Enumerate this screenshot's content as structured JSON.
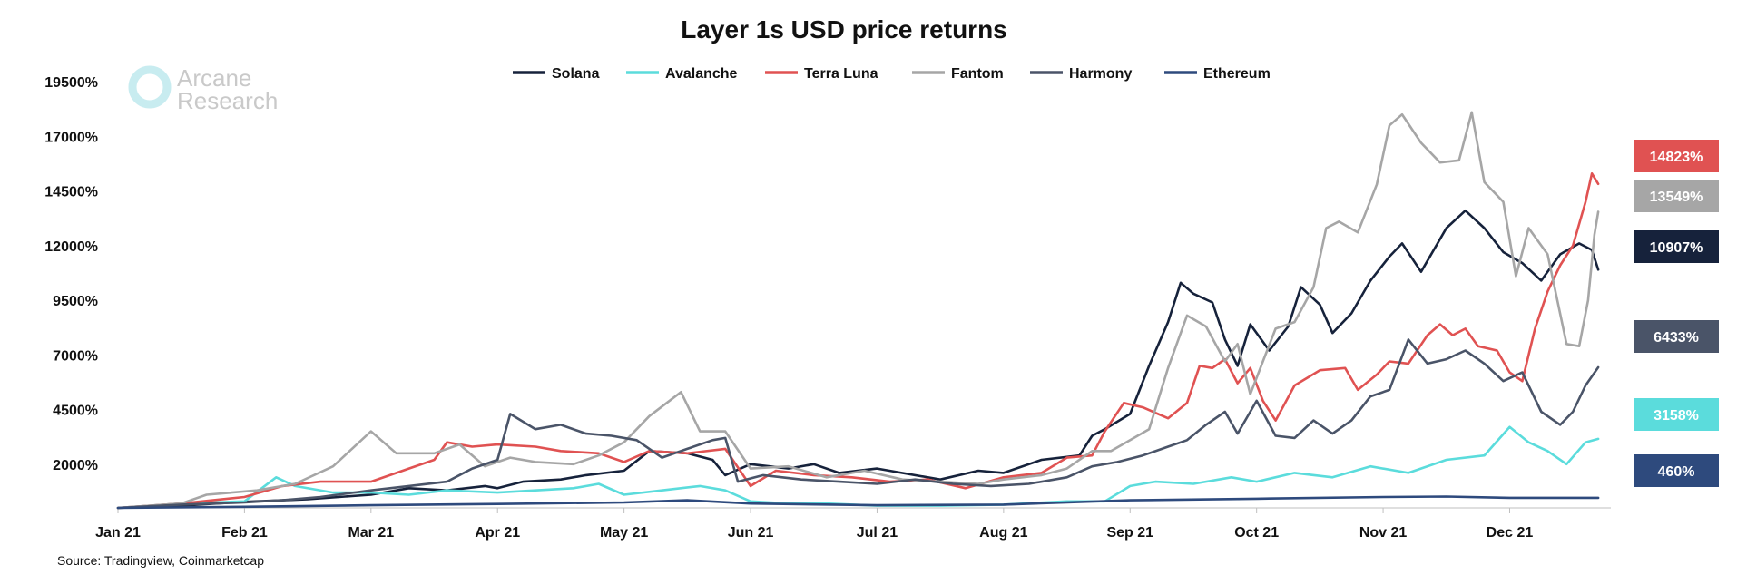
{
  "chart_data": {
    "type": "line",
    "title": "Layer 1s USD price returns",
    "source": "Source: Tradingview, Coinmarketcap",
    "watermark": {
      "line1": "Arcane",
      "line2": "Research"
    },
    "x_tick_labels": [
      "Jan 21",
      "Feb 21",
      "Mar 21",
      "Apr 21",
      "May 21",
      "Jun 21",
      "Jul 21",
      "Aug 21",
      "Sep 21",
      "Oct 21",
      "Nov 21",
      "Dec 21"
    ],
    "y_tick_labels": [
      "2000%",
      "4500%",
      "7000%",
      "9500%",
      "12000%",
      "14500%",
      "17000%",
      "19500%"
    ],
    "y_ticks": [
      2000,
      4500,
      7000,
      9500,
      12000,
      14500,
      17000,
      19500
    ],
    "ylim": [
      0,
      20000
    ],
    "x_unit": "month index (0 = Jan 21)",
    "xlim": [
      0,
      11.8
    ],
    "legend_position": "top",
    "series": [
      {
        "name": "Solana",
        "color": "#16223b",
        "end_label": "10907%",
        "points": [
          [
            0,
            0
          ],
          [
            0.5,
            100
          ],
          [
            1,
            280
          ],
          [
            1.5,
            400
          ],
          [
            2,
            600
          ],
          [
            2.3,
            900
          ],
          [
            2.6,
            800
          ],
          [
            2.9,
            1000
          ],
          [
            3.0,
            900
          ],
          [
            3.2,
            1200
          ],
          [
            3.5,
            1300
          ],
          [
            3.7,
            1500
          ],
          [
            4,
            1700
          ],
          [
            4.2,
            2600
          ],
          [
            4.5,
            2500
          ],
          [
            4.7,
            2200
          ],
          [
            4.8,
            1500
          ],
          [
            5,
            2000
          ],
          [
            5.3,
            1800
          ],
          [
            5.5,
            2000
          ],
          [
            5.7,
            1600
          ],
          [
            6,
            1800
          ],
          [
            6.5,
            1300
          ],
          [
            6.8,
            1700
          ],
          [
            7,
            1600
          ],
          [
            7.3,
            2200
          ],
          [
            7.6,
            2400
          ],
          [
            7.7,
            3300
          ],
          [
            7.8,
            3600
          ],
          [
            8,
            4300
          ],
          [
            8.15,
            6500
          ],
          [
            8.3,
            8500
          ],
          [
            8.4,
            10300
          ],
          [
            8.5,
            9800
          ],
          [
            8.65,
            9400
          ],
          [
            8.75,
            7700
          ],
          [
            8.85,
            6500
          ],
          [
            8.95,
            8400
          ],
          [
            9.1,
            7200
          ],
          [
            9.25,
            8300
          ],
          [
            9.35,
            10100
          ],
          [
            9.5,
            9300
          ],
          [
            9.6,
            8000
          ],
          [
            9.75,
            8900
          ],
          [
            9.9,
            10400
          ],
          [
            10.05,
            11500
          ],
          [
            10.15,
            12100
          ],
          [
            10.3,
            10800
          ],
          [
            10.5,
            12800
          ],
          [
            10.65,
            13600
          ],
          [
            10.8,
            12800
          ],
          [
            10.95,
            11700
          ],
          [
            11.1,
            11200
          ],
          [
            11.25,
            10400
          ],
          [
            11.4,
            11600
          ],
          [
            11.55,
            12100
          ],
          [
            11.65,
            11800
          ],
          [
            11.7,
            10900
          ]
        ]
      },
      {
        "name": "Avalanche",
        "color": "#5bdcdc",
        "end_label": "3158%",
        "points": [
          [
            0,
            0
          ],
          [
            0.5,
            200
          ],
          [
            1,
            300
          ],
          [
            1.25,
            1400
          ],
          [
            1.4,
            1000
          ],
          [
            1.7,
            700
          ],
          [
            2,
            700
          ],
          [
            2.3,
            600
          ],
          [
            2.6,
            800
          ],
          [
            3,
            700
          ],
          [
            3.3,
            800
          ],
          [
            3.6,
            900
          ],
          [
            3.8,
            1100
          ],
          [
            4.0,
            600
          ],
          [
            4.3,
            800
          ],
          [
            4.6,
            1000
          ],
          [
            4.8,
            800
          ],
          [
            5,
            300
          ],
          [
            5.3,
            200
          ],
          [
            5.6,
            200
          ],
          [
            6,
            100
          ],
          [
            6.5,
            100
          ],
          [
            7,
            150
          ],
          [
            7.5,
            300
          ],
          [
            7.8,
            300
          ],
          [
            8,
            1000
          ],
          [
            8.2,
            1200
          ],
          [
            8.5,
            1100
          ],
          [
            8.8,
            1400
          ],
          [
            9.0,
            1200
          ],
          [
            9.3,
            1600
          ],
          [
            9.6,
            1400
          ],
          [
            9.9,
            1900
          ],
          [
            10.2,
            1600
          ],
          [
            10.5,
            2200
          ],
          [
            10.8,
            2400
          ],
          [
            11.0,
            3700
          ],
          [
            11.15,
            3000
          ],
          [
            11.3,
            2600
          ],
          [
            11.45,
            2000
          ],
          [
            11.6,
            3000
          ],
          [
            11.7,
            3158
          ]
        ]
      },
      {
        "name": "Terra Luna",
        "color": "#e05252",
        "end_label": "14823%",
        "points": [
          [
            0,
            0
          ],
          [
            0.5,
            200
          ],
          [
            1,
            500
          ],
          [
            1.3,
            1000
          ],
          [
            1.6,
            1200
          ],
          [
            2,
            1200
          ],
          [
            2.3,
            1800
          ],
          [
            2.5,
            2200
          ],
          [
            2.6,
            3000
          ],
          [
            2.8,
            2800
          ],
          [
            3,
            2900
          ],
          [
            3.3,
            2800
          ],
          [
            3.5,
            2600
          ],
          [
            3.8,
            2500
          ],
          [
            4,
            2100
          ],
          [
            4.2,
            2600
          ],
          [
            4.5,
            2500
          ],
          [
            4.8,
            2700
          ],
          [
            5.0,
            1000
          ],
          [
            5.2,
            1700
          ],
          [
            5.5,
            1500
          ],
          [
            5.8,
            1400
          ],
          [
            6.1,
            1200
          ],
          [
            6.4,
            1300
          ],
          [
            6.7,
            900
          ],
          [
            7.0,
            1400
          ],
          [
            7.3,
            1600
          ],
          [
            7.5,
            2300
          ],
          [
            7.7,
            2400
          ],
          [
            7.8,
            3500
          ],
          [
            7.95,
            4800
          ],
          [
            8.1,
            4600
          ],
          [
            8.3,
            4100
          ],
          [
            8.45,
            4800
          ],
          [
            8.55,
            6500
          ],
          [
            8.65,
            6400
          ],
          [
            8.75,
            6800
          ],
          [
            8.85,
            5700
          ],
          [
            8.95,
            6400
          ],
          [
            9.05,
            4900
          ],
          [
            9.15,
            4000
          ],
          [
            9.3,
            5600
          ],
          [
            9.5,
            6300
          ],
          [
            9.7,
            6400
          ],
          [
            9.8,
            5400
          ],
          [
            9.95,
            6100
          ],
          [
            10.05,
            6700
          ],
          [
            10.2,
            6600
          ],
          [
            10.35,
            7900
          ],
          [
            10.45,
            8400
          ],
          [
            10.55,
            7900
          ],
          [
            10.65,
            8200
          ],
          [
            10.75,
            7400
          ],
          [
            10.9,
            7200
          ],
          [
            11.0,
            6200
          ],
          [
            11.1,
            5800
          ],
          [
            11.2,
            8200
          ],
          [
            11.3,
            9900
          ],
          [
            11.4,
            11100
          ],
          [
            11.5,
            12000
          ],
          [
            11.6,
            14000
          ],
          [
            11.65,
            15300
          ],
          [
            11.7,
            14823
          ]
        ]
      },
      {
        "name": "Fantom",
        "color": "#a6a6a6",
        "end_label": "13549%",
        "points": [
          [
            0,
            0
          ],
          [
            0.5,
            200
          ],
          [
            0.7,
            600
          ],
          [
            1.1,
            800
          ],
          [
            1.4,
            1100
          ],
          [
            1.7,
            1900
          ],
          [
            2.0,
            3500
          ],
          [
            2.2,
            2500
          ],
          [
            2.5,
            2500
          ],
          [
            2.7,
            2900
          ],
          [
            2.9,
            1900
          ],
          [
            3.1,
            2300
          ],
          [
            3.3,
            2100
          ],
          [
            3.6,
            2000
          ],
          [
            3.8,
            2400
          ],
          [
            4.0,
            3000
          ],
          [
            4.2,
            4200
          ],
          [
            4.45,
            5300
          ],
          [
            4.6,
            3500
          ],
          [
            4.8,
            3500
          ],
          [
            5.0,
            1800
          ],
          [
            5.3,
            1900
          ],
          [
            5.6,
            1400
          ],
          [
            5.9,
            1700
          ],
          [
            6.2,
            1300
          ],
          [
            6.5,
            1200
          ],
          [
            6.8,
            1100
          ],
          [
            7.0,
            1300
          ],
          [
            7.3,
            1500
          ],
          [
            7.5,
            1800
          ],
          [
            7.7,
            2600
          ],
          [
            7.85,
            2600
          ],
          [
            8.0,
            3100
          ],
          [
            8.15,
            3600
          ],
          [
            8.3,
            6400
          ],
          [
            8.45,
            8800
          ],
          [
            8.6,
            8300
          ],
          [
            8.75,
            6700
          ],
          [
            8.85,
            7500
          ],
          [
            8.95,
            5200
          ],
          [
            9.05,
            6700
          ],
          [
            9.15,
            8200
          ],
          [
            9.3,
            8500
          ],
          [
            9.45,
            10100
          ],
          [
            9.55,
            12800
          ],
          [
            9.65,
            13100
          ],
          [
            9.8,
            12600
          ],
          [
            9.95,
            14800
          ],
          [
            10.05,
            17500
          ],
          [
            10.15,
            18000
          ],
          [
            10.3,
            16700
          ],
          [
            10.45,
            15800
          ],
          [
            10.6,
            15900
          ],
          [
            10.7,
            18100
          ],
          [
            10.8,
            14900
          ],
          [
            10.95,
            14000
          ],
          [
            11.05,
            10600
          ],
          [
            11.15,
            12800
          ],
          [
            11.3,
            11600
          ],
          [
            11.45,
            7500
          ],
          [
            11.55,
            7400
          ],
          [
            11.62,
            9500
          ],
          [
            11.67,
            12500
          ],
          [
            11.7,
            13549
          ]
        ]
      },
      {
        "name": "Harmony",
        "color": "#4a5468",
        "end_label": "6433%",
        "points": [
          [
            0,
            0
          ],
          [
            0.5,
            150
          ],
          [
            1,
            250
          ],
          [
            1.3,
            350
          ],
          [
            1.6,
            500
          ],
          [
            2,
            800
          ],
          [
            2.3,
            1000
          ],
          [
            2.6,
            1200
          ],
          [
            2.8,
            1800
          ],
          [
            3.0,
            2200
          ],
          [
            3.1,
            4300
          ],
          [
            3.3,
            3600
          ],
          [
            3.5,
            3800
          ],
          [
            3.7,
            3400
          ],
          [
            3.9,
            3300
          ],
          [
            4.1,
            3100
          ],
          [
            4.3,
            2300
          ],
          [
            4.5,
            2700
          ],
          [
            4.7,
            3100
          ],
          [
            4.8,
            3200
          ],
          [
            4.9,
            1200
          ],
          [
            5.1,
            1500
          ],
          [
            5.4,
            1300
          ],
          [
            5.7,
            1200
          ],
          [
            6.0,
            1100
          ],
          [
            6.3,
            1300
          ],
          [
            6.6,
            1100
          ],
          [
            6.9,
            1000
          ],
          [
            7.2,
            1100
          ],
          [
            7.5,
            1400
          ],
          [
            7.7,
            1900
          ],
          [
            7.9,
            2100
          ],
          [
            8.1,
            2400
          ],
          [
            8.3,
            2800
          ],
          [
            8.45,
            3100
          ],
          [
            8.6,
            3800
          ],
          [
            8.75,
            4400
          ],
          [
            8.85,
            3400
          ],
          [
            9.0,
            4900
          ],
          [
            9.15,
            3300
          ],
          [
            9.3,
            3200
          ],
          [
            9.45,
            4000
          ],
          [
            9.6,
            3400
          ],
          [
            9.75,
            4000
          ],
          [
            9.9,
            5100
          ],
          [
            10.05,
            5400
          ],
          [
            10.2,
            7700
          ],
          [
            10.35,
            6600
          ],
          [
            10.5,
            6800
          ],
          [
            10.65,
            7200
          ],
          [
            10.8,
            6600
          ],
          [
            10.95,
            5800
          ],
          [
            11.1,
            6200
          ],
          [
            11.25,
            4400
          ],
          [
            11.4,
            3800
          ],
          [
            11.5,
            4400
          ],
          [
            11.6,
            5600
          ],
          [
            11.7,
            6433
          ]
        ]
      },
      {
        "name": "Ethereum",
        "color": "#2e4a7d",
        "end_label": "460%",
        "points": [
          [
            0,
            0
          ],
          [
            1,
            50
          ],
          [
            2,
            120
          ],
          [
            3,
            180
          ],
          [
            4,
            250
          ],
          [
            4.5,
            350
          ],
          [
            5,
            200
          ],
          [
            6,
            120
          ],
          [
            7,
            150
          ],
          [
            8,
            350
          ],
          [
            9,
            420
          ],
          [
            10,
            500
          ],
          [
            10.5,
            520
          ],
          [
            11,
            460
          ],
          [
            11.7,
            460
          ]
        ]
      }
    ]
  }
}
